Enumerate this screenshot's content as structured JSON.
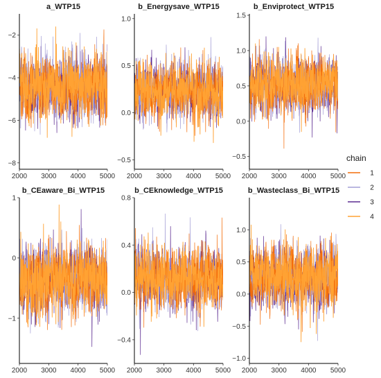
{
  "chart_data": {
    "type": "line",
    "description_kind": "MCMC trace plots",
    "x_range": [
      2000,
      5000
    ],
    "x_ticks": [
      2000,
      3000,
      4000,
      5000
    ],
    "grid": false,
    "legend": {
      "title": "chain",
      "placement": "right",
      "entries": [
        {
          "label": "1",
          "color": "#f46d0a"
        },
        {
          "label": "2",
          "color": "#a49fd6"
        },
        {
          "label": "3",
          "color": "#5c2b91"
        },
        {
          "label": "4",
          "color": "#ffa233"
        }
      ]
    },
    "panels": [
      {
        "title": "a_WTP15",
        "ylim": [
          -8.3,
          -1.0
        ],
        "y_ticks": [
          -8,
          -6,
          -4,
          -2
        ],
        "y_tick_labels": [
          "−8",
          "−6",
          "−4",
          "−2"
        ],
        "mean": -4.4,
        "sd": 0.75
      },
      {
        "title": "b_Energysave_WTP15",
        "ylim": [
          -0.6,
          1.05
        ],
        "y_ticks": [
          -0.5,
          0.0,
          0.5,
          1.0
        ],
        "y_tick_labels": [
          "−0.5",
          "0.0",
          "0.5",
          "1.0"
        ],
        "mean": 0.24,
        "sd": 0.15
      },
      {
        "title": "b_Enviprotect_WTP15",
        "ylim": [
          -0.68,
          1.52
        ],
        "y_ticks": [
          -0.5,
          0.0,
          0.5,
          1.0,
          1.5
        ],
        "y_tick_labels": [
          "−0.5",
          "0.0",
          "0.5",
          "1.0",
          "1.5"
        ],
        "mean": 0.52,
        "sd": 0.2
      },
      {
        "title": "b_CEaware_Bi_WTP15",
        "ylim": [
          -1.75,
          1.0
        ],
        "y_ticks": [
          -1,
          0,
          1
        ],
        "y_tick_labels": [
          "−1",
          "0",
          "1"
        ],
        "mean": -0.35,
        "sd": 0.29
      },
      {
        "title": "b_CEknowledge_WTP15",
        "ylim": [
          -0.6,
          0.8
        ],
        "y_ticks": [
          -0.4,
          0.0,
          0.4,
          0.8
        ],
        "y_tick_labels": [
          "−0.4",
          "0.0",
          "0.4",
          "0.8"
        ],
        "mean": 0.12,
        "sd": 0.13
      },
      {
        "title": "b_Wasteclass_Bi_WTP15",
        "ylim": [
          -1.08,
          1.5
        ],
        "y_ticks": [
          -1.0,
          -0.5,
          0.0,
          0.5,
          1.0
        ],
        "y_tick_labels": [
          "−1.0",
          "−0.5",
          "0.0",
          "0.5",
          "1.0"
        ],
        "mean": 0.26,
        "sd": 0.24
      }
    ]
  }
}
